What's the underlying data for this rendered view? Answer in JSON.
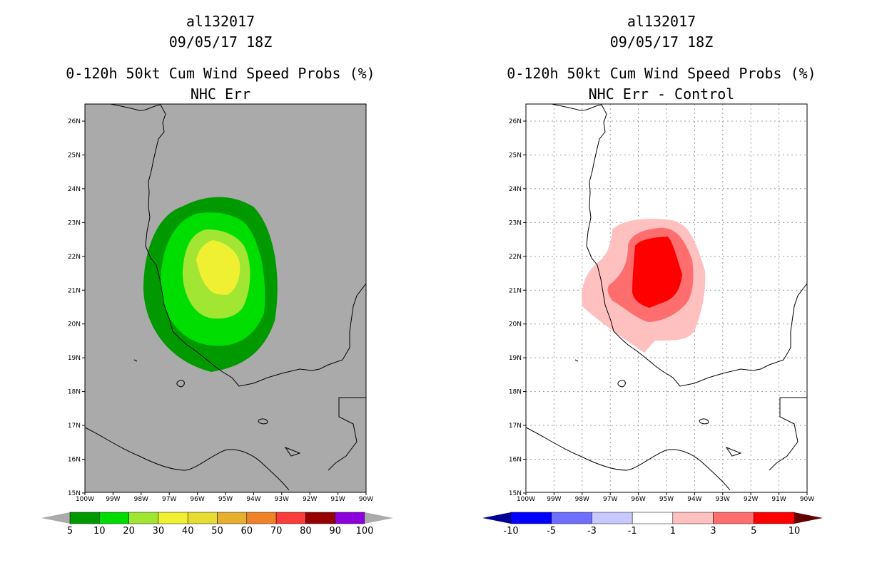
{
  "panels": [
    {
      "storm_id": "al132017",
      "datetime": "09/05/17 18Z",
      "product": "0-120h 50kt Cum Wind Speed Probs (%)",
      "subtitle": "NHC Err",
      "background_color": "#aaaaaa",
      "gridlines": false,
      "colorbar": {
        "labels": [
          "5",
          "10",
          "20",
          "30",
          "40",
          "50",
          "60",
          "70",
          "80",
          "90",
          "100"
        ],
        "colors": [
          "#009900",
          "#00dd00",
          "#a0e632",
          "#f0f032",
          "#e6dc32",
          "#e6af2d",
          "#f08228",
          "#fa3c3c",
          "#960000",
          "#8c00dc"
        ],
        "end_color": "#aaaaaa"
      },
      "contours": [
        {
          "level": "5-10",
          "color": "#009900"
        },
        {
          "level": "10-20",
          "color": "#00dd00"
        },
        {
          "level": "20-30",
          "color": "#a0e632"
        },
        {
          "level": "30-40",
          "color": "#f0f032"
        }
      ]
    },
    {
      "storm_id": "al132017",
      "datetime": "09/05/17 18Z",
      "product": "0-120h 50kt Cum Wind Speed Probs (%)",
      "subtitle": "NHC Err - Control",
      "background_color": "#ffffff",
      "gridlines": true,
      "colorbar": {
        "labels": [
          "-10",
          "-5",
          "-3",
          "-1",
          "1",
          "3",
          "5",
          "10"
        ],
        "colors": [
          "#0000ff",
          "#6e6eff",
          "#c8c8ff",
          "#ffffff",
          "#ffc0c0",
          "#ff6e6e",
          "#ff0000"
        ],
        "end_color_low": "#000096",
        "end_color_high": "#640000"
      },
      "contours": [
        {
          "level": "1-3",
          "color": "#ffc0c0"
        },
        {
          "level": "3-5",
          "color": "#ff6e6e"
        },
        {
          "level": "5-10",
          "color": "#ff0000"
        }
      ]
    }
  ],
  "axes": {
    "lat_labels": [
      "26N",
      "25N",
      "24N",
      "23N",
      "22N",
      "21N",
      "20N",
      "19N",
      "18N",
      "17N",
      "16N",
      "15N"
    ],
    "lon_labels": [
      "100W",
      "99W",
      "98W",
      "97W",
      "96W",
      "95W",
      "94W",
      "93W",
      "92W",
      "91W",
      "90W"
    ]
  }
}
